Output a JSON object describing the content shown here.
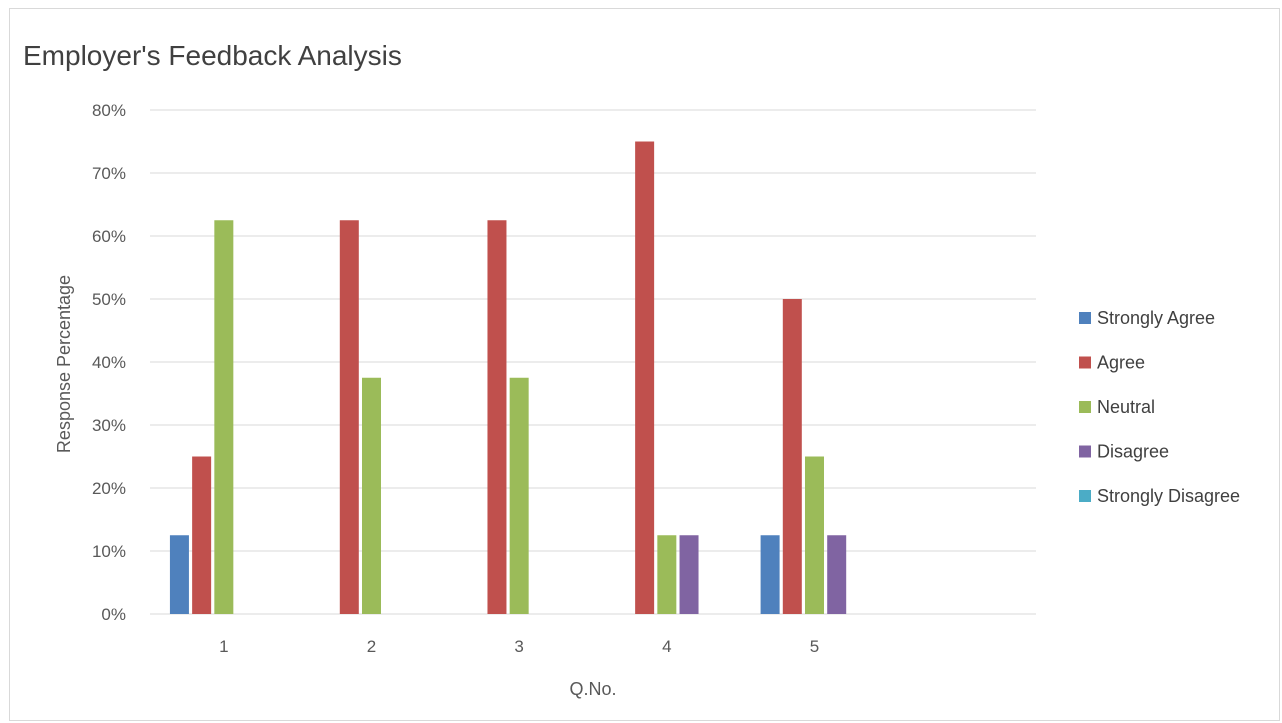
{
  "chart_data": {
    "type": "bar",
    "title": "Employer's Feedback Analysis",
    "xlabel": "Q.No.",
    "ylabel": "Response Percentage",
    "categories": [
      "1",
      "2",
      "3",
      "4",
      "5",
      ""
    ],
    "ylim": [
      0,
      80
    ],
    "yticks": [
      "0%",
      "10%",
      "20%",
      "30%",
      "40%",
      "50%",
      "60%",
      "70%",
      "80%"
    ],
    "grid": true,
    "legend_position": "right",
    "series": [
      {
        "name": "Strongly Agree",
        "color": "#4f81bd",
        "values": [
          12.5,
          0,
          0,
          0,
          12.5,
          0
        ]
      },
      {
        "name": "Agree",
        "color": "#c0504d",
        "values": [
          25,
          62.5,
          62.5,
          75,
          50,
          0
        ]
      },
      {
        "name": "Neutral",
        "color": "#9bbb59",
        "values": [
          62.5,
          37.5,
          37.5,
          12.5,
          25,
          0
        ]
      },
      {
        "name": "Disagree",
        "color": "#8064a2",
        "values": [
          0,
          0,
          0,
          12.5,
          12.5,
          0
        ]
      },
      {
        "name": "Strongly Disagree",
        "color": "#4bacc6",
        "values": [
          0,
          0,
          0,
          0,
          0,
          0
        ]
      }
    ]
  }
}
